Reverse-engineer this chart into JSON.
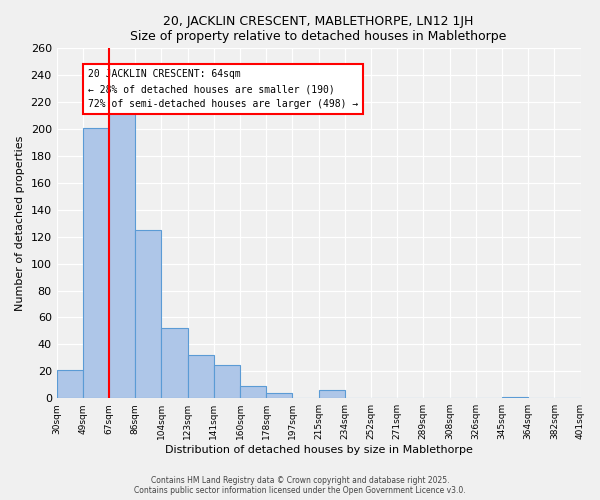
{
  "title": "20, JACKLIN CRESCENT, MABLETHORPE, LN12 1JH",
  "subtitle": "Size of property relative to detached houses in Mablethorpe",
  "xlabel": "Distribution of detached houses by size in Mablethorpe",
  "ylabel": "Number of detached properties",
  "bar_values": [
    21,
    201,
    214,
    125,
    52,
    32,
    25,
    9,
    4,
    0,
    6,
    0,
    0,
    0,
    0,
    0,
    0,
    1,
    0,
    0
  ],
  "tick_labels": [
    "30sqm",
    "49sqm",
    "67sqm",
    "86sqm",
    "104sqm",
    "123sqm",
    "141sqm",
    "160sqm",
    "178sqm",
    "197sqm",
    "215sqm",
    "234sqm",
    "252sqm",
    "271sqm",
    "289sqm",
    "308sqm",
    "326sqm",
    "345sqm",
    "364sqm",
    "382sqm",
    "401sqm"
  ],
  "bar_color": "#aec6e8",
  "bar_edge_color": "#5b9bd5",
  "property_line_x": 2.0,
  "property_line_label": "20 JACKLIN CRESCENT: 64sqm",
  "smaller_pct": 28,
  "smaller_count": 190,
  "larger_pct": 72,
  "larger_count": 498,
  "ylim": [
    0,
    260
  ],
  "yticks": [
    0,
    20,
    40,
    60,
    80,
    100,
    120,
    140,
    160,
    180,
    200,
    220,
    240,
    260
  ],
  "footer1": "Contains HM Land Registry data © Crown copyright and database right 2025.",
  "footer2": "Contains public sector information licensed under the Open Government Licence v3.0.",
  "background_color": "#f0f0f0"
}
